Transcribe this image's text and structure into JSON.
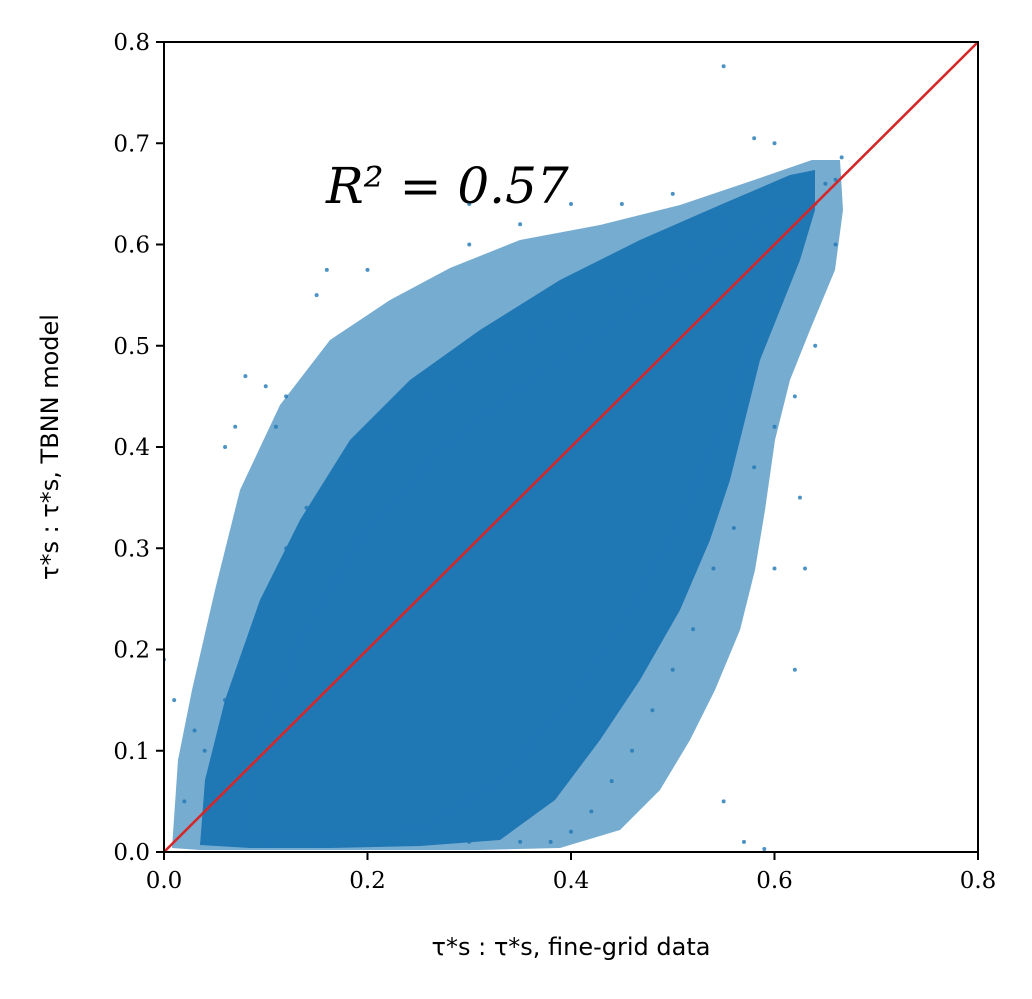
{
  "chart_data": {
    "type": "scatter",
    "xlabel": "τ*s : τ*s, fine-grid data",
    "ylabel": "τ*s : τ*s, TBNN model",
    "xlim": [
      0.0,
      0.8
    ],
    "ylim": [
      0.0,
      0.8
    ],
    "xticks": [
      "0.0",
      "0.2",
      "0.4",
      "0.6",
      "0.8"
    ],
    "yticks": [
      "0.0",
      "0.1",
      "0.2",
      "0.3",
      "0.4",
      "0.5",
      "0.6",
      "0.7",
      "0.8"
    ],
    "annotation": "R² = 0.57",
    "r_squared": 0.57,
    "reference_line": {
      "x": [
        0.0,
        0.8
      ],
      "y": [
        0.0,
        0.8
      ]
    },
    "grid": false,
    "series": [
      {
        "color": "#1f77b4",
        "points": [
          [
            0.666,
            0.686
          ],
          [
            0.66,
            0.664
          ],
          [
            0.64,
            0.64
          ],
          [
            0.62,
            0.63
          ],
          [
            0.6,
            0.62
          ],
          [
            0.58,
            0.6
          ],
          [
            0.55,
            0.62
          ],
          [
            0.52,
            0.6
          ],
          [
            0.5,
            0.58
          ],
          [
            0.48,
            0.57
          ],
          [
            0.46,
            0.55
          ],
          [
            0.44,
            0.55
          ],
          [
            0.42,
            0.54
          ],
          [
            0.4,
            0.53
          ],
          [
            0.38,
            0.52
          ],
          [
            0.36,
            0.51
          ],
          [
            0.34,
            0.5
          ],
          [
            0.32,
            0.49
          ],
          [
            0.3,
            0.48
          ],
          [
            0.28,
            0.46
          ],
          [
            0.26,
            0.45
          ],
          [
            0.24,
            0.44
          ],
          [
            0.22,
            0.42
          ],
          [
            0.2,
            0.4
          ],
          [
            0.18,
            0.38
          ],
          [
            0.16,
            0.36
          ],
          [
            0.14,
            0.34
          ],
          [
            0.12,
            0.3
          ],
          [
            0.1,
            0.25
          ],
          [
            0.08,
            0.2
          ],
          [
            0.06,
            0.15
          ],
          [
            0.04,
            0.1
          ],
          [
            0.02,
            0.05
          ],
          [
            0.55,
            0.776
          ],
          [
            0.58,
            0.705
          ],
          [
            0.6,
            0.7
          ],
          [
            0.65,
            0.66
          ],
          [
            0.66,
            0.6
          ],
          [
            0.64,
            0.5
          ],
          [
            0.62,
            0.45
          ],
          [
            0.6,
            0.42
          ],
          [
            0.58,
            0.38
          ],
          [
            0.56,
            0.32
          ],
          [
            0.54,
            0.28
          ],
          [
            0.52,
            0.22
          ],
          [
            0.5,
            0.18
          ],
          [
            0.48,
            0.14
          ],
          [
            0.46,
            0.1
          ],
          [
            0.44,
            0.07
          ],
          [
            0.42,
            0.04
          ],
          [
            0.4,
            0.02
          ],
          [
            0.38,
            0.01
          ],
          [
            0.35,
            0.01
          ],
          [
            0.3,
            0.01
          ],
          [
            0.25,
            0.01
          ],
          [
            0.2,
            0.01
          ],
          [
            0.15,
            0.01
          ],
          [
            0.1,
            0.01
          ],
          [
            0.57,
            0.01
          ],
          [
            0.59,
            0.003
          ],
          [
            0.6,
            0.28
          ],
          [
            0.625,
            0.35
          ],
          [
            0.62,
            0.18
          ],
          [
            0.63,
            0.28
          ],
          [
            0.55,
            0.05
          ],
          [
            0.15,
            0.55
          ],
          [
            0.16,
            0.575
          ],
          [
            0.2,
            0.575
          ],
          [
            0.08,
            0.47
          ],
          [
            0.07,
            0.42
          ],
          [
            0.06,
            0.4
          ],
          [
            0.0,
            0.19
          ],
          [
            0.01,
            0.15
          ],
          [
            0.03,
            0.12
          ],
          [
            0.05,
            0.05
          ],
          [
            0.12,
            0.45
          ],
          [
            0.11,
            0.42
          ],
          [
            0.1,
            0.46
          ],
          [
            0.3,
            0.6
          ],
          [
            0.35,
            0.62
          ],
          [
            0.4,
            0.64
          ],
          [
            0.45,
            0.64
          ],
          [
            0.5,
            0.65
          ],
          [
            0.3,
            0.64
          ]
        ]
      }
    ]
  }
}
